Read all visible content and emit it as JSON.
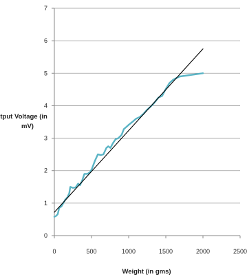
{
  "chart_data": {
    "type": "line",
    "title": "",
    "xlabel": "Weight (in gms)",
    "ylabel_lines": [
      "Output Voltage (in",
      "mV)"
    ],
    "xlim": [
      0,
      2500
    ],
    "ylim": [
      0,
      7
    ],
    "x_ticks": [
      "0",
      "500",
      "1000",
      "1500",
      "2000",
      "2500"
    ],
    "y_ticks": [
      "0",
      "1",
      "2",
      "3",
      "4",
      "5",
      "6",
      "7"
    ],
    "grid": "horizontal",
    "legend": "none",
    "series": [
      {
        "style": "measured",
        "color": "#5ab4c5",
        "points": [
          [
            0,
            0.58
          ],
          [
            20,
            0.6
          ],
          [
            45,
            0.66
          ],
          [
            65,
            0.85
          ],
          [
            95,
            0.9
          ],
          [
            120,
            1.0
          ],
          [
            150,
            1.12
          ],
          [
            175,
            1.18
          ],
          [
            200,
            1.3
          ],
          [
            215,
            1.5
          ],
          [
            250,
            1.47
          ],
          [
            285,
            1.48
          ],
          [
            320,
            1.6
          ],
          [
            345,
            1.55
          ],
          [
            375,
            1.7
          ],
          [
            405,
            1.9
          ],
          [
            445,
            1.9
          ],
          [
            480,
            1.95
          ],
          [
            505,
            2.05
          ],
          [
            545,
            2.3
          ],
          [
            585,
            2.5
          ],
          [
            625,
            2.48
          ],
          [
            660,
            2.5
          ],
          [
            700,
            2.7
          ],
          [
            725,
            2.75
          ],
          [
            755,
            2.7
          ],
          [
            790,
            2.85
          ],
          [
            825,
            2.97
          ],
          [
            860,
            3.0
          ],
          [
            905,
            3.1
          ],
          [
            935,
            3.28
          ],
          [
            970,
            3.35
          ],
          [
            1005,
            3.42
          ],
          [
            1050,
            3.5
          ],
          [
            1100,
            3.6
          ],
          [
            1150,
            3.65
          ],
          [
            1200,
            3.75
          ],
          [
            1250,
            3.88
          ],
          [
            1300,
            3.98
          ],
          [
            1350,
            4.1
          ],
          [
            1400,
            4.25
          ],
          [
            1450,
            4.3
          ],
          [
            1495,
            4.5
          ],
          [
            1550,
            4.7
          ],
          [
            1600,
            4.8
          ],
          [
            1640,
            4.85
          ],
          [
            1690,
            4.9
          ],
          [
            2000,
            5.0
          ]
        ]
      },
      {
        "style": "trendline",
        "color": "#000000",
        "points": [
          [
            0,
            0.72
          ],
          [
            2000,
            5.75
          ]
        ]
      }
    ]
  }
}
